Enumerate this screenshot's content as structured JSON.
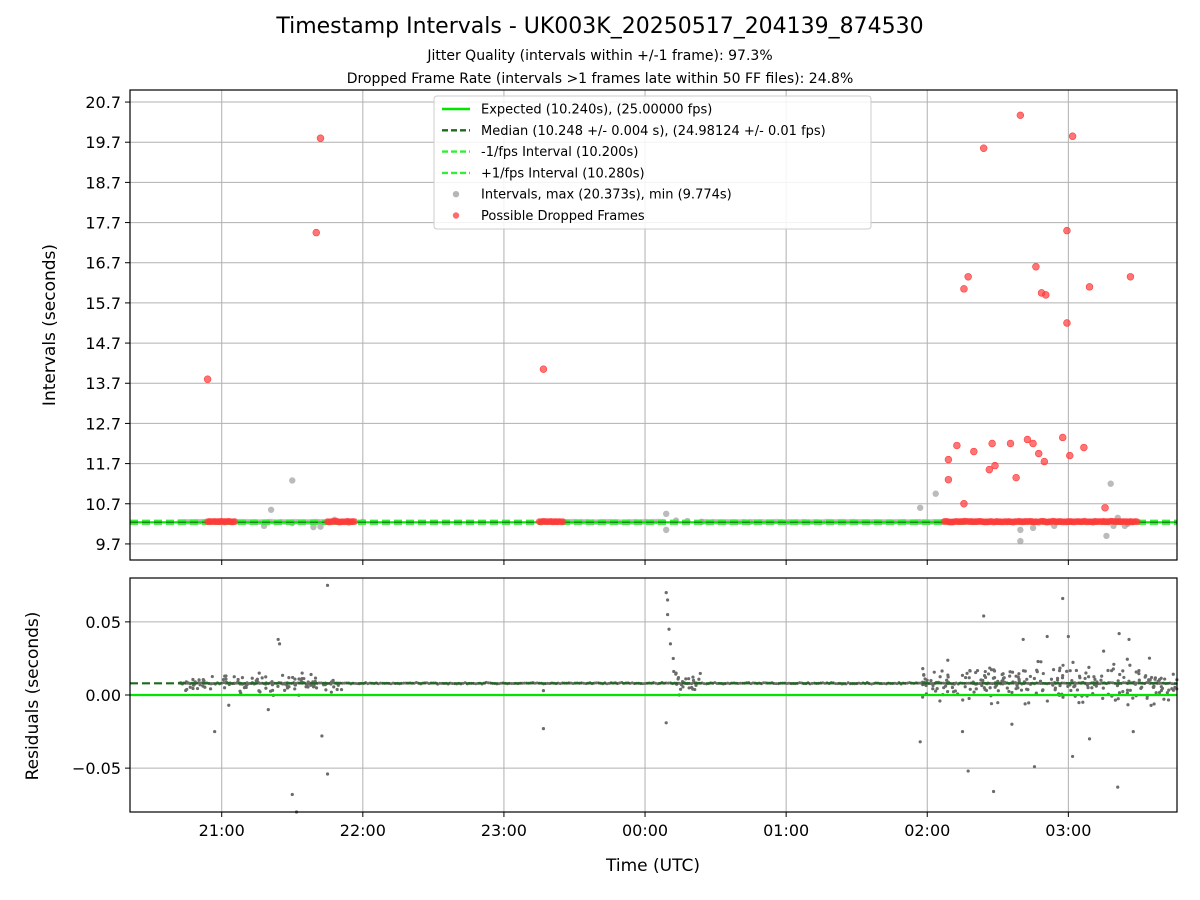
{
  "title": "Timestamp Intervals - UK003K_20250517_204139_874530",
  "subtitle_lines": [
    "Jitter Quality (intervals within +/-1 frame): 97.3%",
    "Dropped Frame Rate (intervals >1 frames late within 50 FF files): 24.8%"
  ],
  "colors": {
    "expected": "#00e600",
    "median": "#1a6b1a",
    "interval_band": "#33ee33",
    "intervals": "#9e9e9e",
    "dropped": "#ff3b3b",
    "residual_points": "#6b6b6b",
    "grid": "#b0b0b0"
  },
  "chart_data": [
    {
      "type": "scatter",
      "title": "",
      "xlabel": "",
      "ylabel": "Intervals (seconds)",
      "x_unit": "hours since 00:00 UTC, negative = previous day",
      "xlim": [
        -3.65,
        3.77
      ],
      "ylim": [
        9.3,
        21.0
      ],
      "yticks": [
        9.7,
        10.7,
        11.7,
        12.7,
        13.7,
        14.7,
        15.7,
        16.7,
        17.7,
        18.7,
        19.7,
        20.7
      ],
      "ytick_labels": [
        "9.7",
        "10.7",
        "11.7",
        "12.7",
        "13.7",
        "14.7",
        "15.7",
        "16.7",
        "17.7",
        "18.7",
        "19.7",
        "20.7"
      ],
      "xticks": [
        -3,
        -2,
        -1,
        0,
        1,
        2,
        3
      ],
      "xtick_labels": [
        "21:00",
        "22:00",
        "23:00",
        "00:00",
        "01:00",
        "02:00",
        "03:00"
      ],
      "grid": true,
      "legend_position": "top-center",
      "lines": [
        {
          "name": "Expected (10.240s), (25.00000 fps)",
          "y": 10.24,
          "style": "solid",
          "color_key": "expected"
        },
        {
          "name": "Median (10.248 +/- 0.004 s), (24.98124 +/- 0.01 fps)",
          "y": 10.248,
          "style": "dashed",
          "color_key": "median"
        },
        {
          "name": "-1/fps Interval (10.200s)",
          "y": 10.2,
          "style": "dashed",
          "color_key": "interval_band"
        },
        {
          "name": "+1/fps Interval (10.280s)",
          "y": 10.28,
          "style": "dashed",
          "color_key": "interval_band"
        }
      ],
      "series": [
        {
          "name": "Intervals, max (20.373s), min (9.774s)",
          "color_key": "intervals",
          "normal_band": {
            "y": 10.248,
            "segments": [
              [
                -3.3,
                -2.15
              ],
              [
                0.75,
                1.02
              ],
              [
                1.02,
                1.95
              ]
            ]
          },
          "points": [
            [
              -2.98,
              10.24
            ],
            [
              -2.5,
              10.22
            ],
            [
              -2.35,
              10.12
            ],
            [
              -2.3,
              10.13
            ],
            [
              -2.2,
              10.3
            ],
            [
              -2.1,
              10.23
            ],
            [
              -2.0,
              10.25
            ],
            [
              -2.65,
              10.55
            ],
            [
              -2.5,
              11.28
            ],
            [
              -2.7,
              10.15
            ],
            [
              0.15,
              10.45
            ],
            [
              0.15,
              10.05
            ],
            [
              0.22,
              10.28
            ],
            [
              0.3,
              10.27
            ],
            [
              0.4,
              10.25
            ],
            [
              1.95,
              10.6
            ],
            [
              2.06,
              10.95
            ],
            [
              2.66,
              9.77
            ],
            [
              2.66,
              10.05
            ],
            [
              2.75,
              10.1
            ],
            [
              3.27,
              9.9
            ],
            [
              3.3,
              11.2
            ],
            [
              3.32,
              10.15
            ],
            [
              3.35,
              10.35
            ],
            [
              3.4,
              10.15
            ],
            [
              3.42,
              10.2
            ],
            [
              2.9,
              10.15
            ]
          ]
        },
        {
          "name": "Possible Dropped Frames",
          "color_key": "dropped",
          "clusters": [
            [
              -3.1,
              -2.9
            ],
            [
              -2.25,
              -2.05
            ],
            [
              -0.75,
              -0.57
            ],
            [
              2.12,
              3.5
            ]
          ],
          "cluster_y": 10.255,
          "points": [
            [
              -3.1,
              13.8
            ],
            [
              -2.3,
              19.8
            ],
            [
              -2.33,
              17.45
            ],
            [
              -0.72,
              14.05
            ],
            [
              2.15,
              11.3
            ],
            [
              2.15,
              11.8
            ],
            [
              2.21,
              12.15
            ],
            [
              2.26,
              16.05
            ],
            [
              2.29,
              16.35
            ],
            [
              2.26,
              10.7
            ],
            [
              2.33,
              12.0
            ],
            [
              2.4,
              19.55
            ],
            [
              2.44,
              11.55
            ],
            [
              2.46,
              12.2
            ],
            [
              2.48,
              11.65
            ],
            [
              2.59,
              12.2
            ],
            [
              2.63,
              11.35
            ],
            [
              2.66,
              20.37
            ],
            [
              2.71,
              12.3
            ],
            [
              2.75,
              12.2
            ],
            [
              2.77,
              16.6
            ],
            [
              2.79,
              11.95
            ],
            [
              2.81,
              15.95
            ],
            [
              2.83,
              11.75
            ],
            [
              2.84,
              15.9
            ],
            [
              2.96,
              12.35
            ],
            [
              2.99,
              17.5
            ],
            [
              2.99,
              15.2
            ],
            [
              3.01,
              11.9
            ],
            [
              3.03,
              19.85
            ],
            [
              3.11,
              12.1
            ],
            [
              3.15,
              16.1
            ],
            [
              3.26,
              10.6
            ],
            [
              3.44,
              16.35
            ]
          ]
        }
      ]
    },
    {
      "type": "scatter",
      "title": "",
      "xlabel": "Time (UTC)",
      "ylabel": "Residuals (seconds)",
      "xlim": [
        -3.65,
        3.77
      ],
      "ylim": [
        -0.08,
        0.08
      ],
      "yticks": [
        -0.05,
        0.0,
        0.05
      ],
      "ytick_labels": [
        "−0.05",
        "0.00",
        "0.05"
      ],
      "xticks": [
        -3,
        -2,
        -1,
        0,
        1,
        2,
        3
      ],
      "xtick_labels": [
        "21:00",
        "22:00",
        "23:00",
        "00:00",
        "01:00",
        "02:00",
        "03:00"
      ],
      "grid": true,
      "lines": [
        {
          "name": "Expected",
          "y": 0.0,
          "style": "solid",
          "color_key": "expected"
        },
        {
          "name": "Median",
          "y": 0.008,
          "style": "dashed",
          "color_key": "median"
        }
      ],
      "series": [
        {
          "name": "Residuals",
          "color_key": "residual_points",
          "baseline": 0.008,
          "dense_ranges": [
            [
              -3.3,
              -2.15
            ],
            [
              0.2,
              0.4
            ],
            [
              1.95,
              3.77
            ]
          ],
          "spike_points": [
            [
              -2.25,
              0.075
            ],
            [
              -2.5,
              -0.068
            ],
            [
              -2.47,
              -0.08
            ],
            [
              -2.25,
              -0.054
            ],
            [
              -2.29,
              -0.028
            ],
            [
              -2.67,
              -0.01
            ],
            [
              -2.6,
              0.038
            ],
            [
              -2.59,
              0.035
            ],
            [
              -3.05,
              -0.025
            ],
            [
              -2.95,
              -0.007
            ],
            [
              -2.43,
              0.015
            ],
            [
              -0.72,
              -0.023
            ],
            [
              -0.72,
              0.003
            ],
            [
              0.15,
              0.07
            ],
            [
              0.15,
              -0.019
            ],
            [
              0.16,
              0.065
            ],
            [
              0.16,
              0.055
            ],
            [
              0.17,
              0.045
            ],
            [
              0.18,
              0.035
            ],
            [
              0.2,
              0.025
            ],
            [
              0.22,
              0.015
            ],
            [
              1.95,
              -0.032
            ],
            [
              2.29,
              -0.052
            ],
            [
              2.4,
              0.054
            ],
            [
              2.47,
              -0.066
            ],
            [
              2.76,
              -0.049
            ],
            [
              2.68,
              0.038
            ],
            [
              2.96,
              0.066
            ],
            [
              3.0,
              0.04
            ],
            [
              3.03,
              -0.042
            ],
            [
              3.35,
              -0.063
            ],
            [
              3.36,
              0.042
            ],
            [
              3.43,
              0.038
            ],
            [
              3.46,
              -0.025
            ],
            [
              2.25,
              -0.025
            ],
            [
              2.6,
              -0.02
            ],
            [
              2.85,
              0.04
            ],
            [
              3.15,
              -0.03
            ],
            [
              3.25,
              0.03
            ]
          ]
        }
      ]
    }
  ]
}
